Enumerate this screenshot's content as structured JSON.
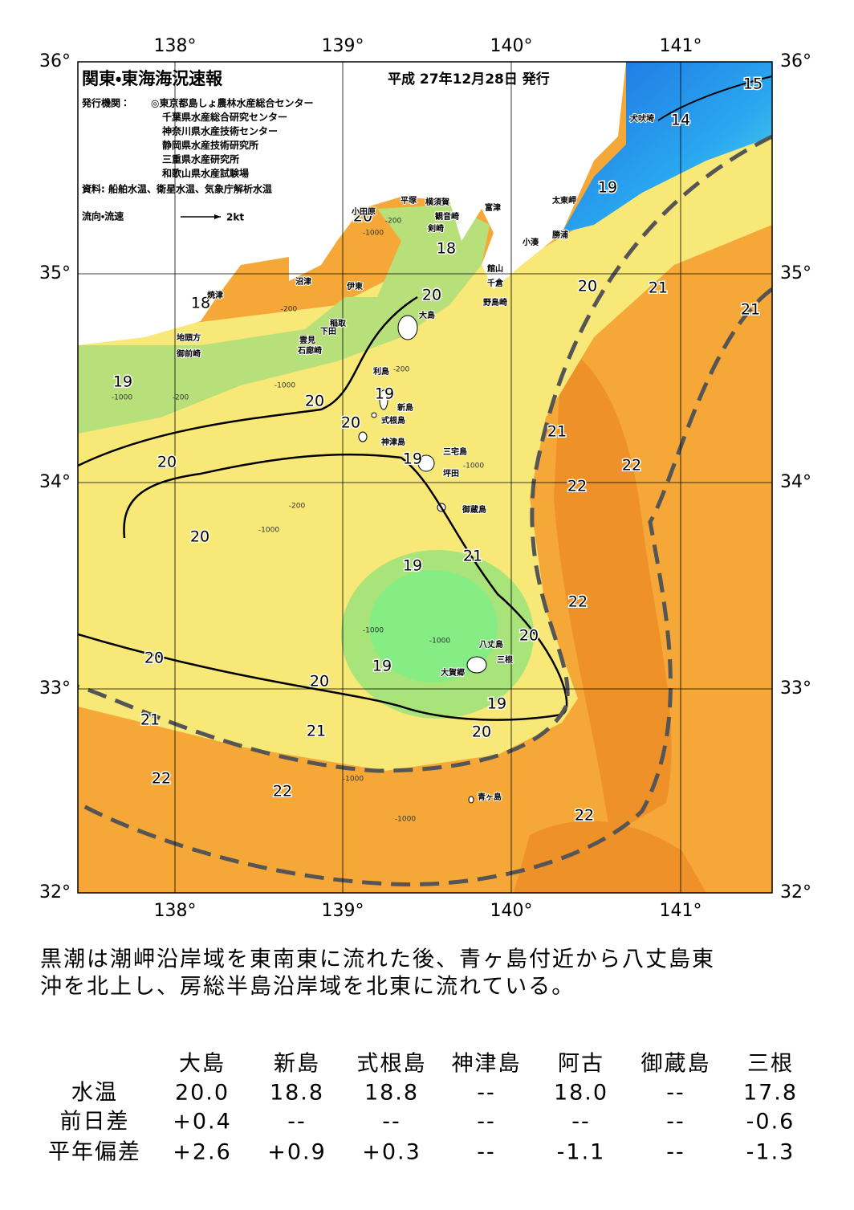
{
  "header": {
    "title": "関東・東海海況速報",
    "date": "平成 27年12月28日 発行",
    "publisher_label": "発行機関：",
    "publishers": [
      "◎東京都島しょ農林水産総合センター",
      "千葉県水産総合研究センター",
      "神奈川県水産技術センター",
      "静岡県水産技術研究所",
      "三重県水産研究所",
      "和歌山県水産試験場"
    ],
    "source": "資料: 船舶水温、衛星水温、気象庁解析水温",
    "legend_label": "流向・流速",
    "legend_scale": "2kt"
  },
  "map": {
    "longitudes": [
      "138°",
      "139°",
      "140°",
      "141°"
    ],
    "latitudes": [
      "36°",
      "35°",
      "34°",
      "33°",
      "32°"
    ],
    "contour_labels": [
      "15",
      "14",
      "19",
      "20",
      "18",
      "20",
      "21",
      "21",
      "18",
      "20",
      "19",
      "20",
      "19",
      "20",
      "21",
      "22",
      "19",
      "20",
      "22",
      "20",
      "21",
      "19",
      "22",
      "20",
      "20",
      "19",
      "20",
      "19",
      "21",
      "21",
      "20",
      "22",
      "22",
      "22"
    ],
    "place_names": [
      "犬吠埼",
      "太東岬",
      "勝浦",
      "小湊",
      "富津",
      "横須賀",
      "平塚",
      "観音崎",
      "剣崎",
      "小田原",
      "館山",
      "千倉",
      "野島崎",
      "大島",
      "沼津",
      "伊東",
      "焼津",
      "稲取",
      "下田",
      "雲見",
      "石廊崎",
      "地頭方",
      "御前崎",
      "利島",
      "新島",
      "式根島",
      "神津島",
      "三宅島",
      "坪田",
      "御蔵島",
      "八丈島",
      "三根",
      "大賀郷",
      "青ヶ島"
    ],
    "depth_labels": [
      "-200",
      "-1000",
      "-200",
      "-1000",
      "-200",
      "-1000",
      "-200",
      "-1000",
      "-1000",
      "-200",
      "-1000",
      "-1000",
      "-1000",
      "-1000"
    ]
  },
  "summary": [
    "黒潮は潮岬沿岸域を東南東に流れた後、青ヶ島付近から八丈島東",
    "沖を北上し、房総半島沿岸域を北東に流れている。"
  ],
  "table": {
    "columns": [
      "大島",
      "新島",
      "式根島",
      "神津島",
      "阿古",
      "御蔵島",
      "三根"
    ],
    "rows": [
      {
        "label": "水温",
        "cells": [
          "20.0",
          "18.8",
          "18.8",
          "--",
          "18.0",
          "--",
          "17.8"
        ]
      },
      {
        "label": "前日差",
        "cells": [
          "+0.4",
          "--",
          "--",
          "--",
          "--",
          "--",
          "-0.6"
        ]
      },
      {
        "label": "平年偏差",
        "cells": [
          "+2.6",
          "+0.9",
          "+0.3",
          "--",
          "-1.1",
          "--",
          "-1.3"
        ]
      }
    ]
  }
}
